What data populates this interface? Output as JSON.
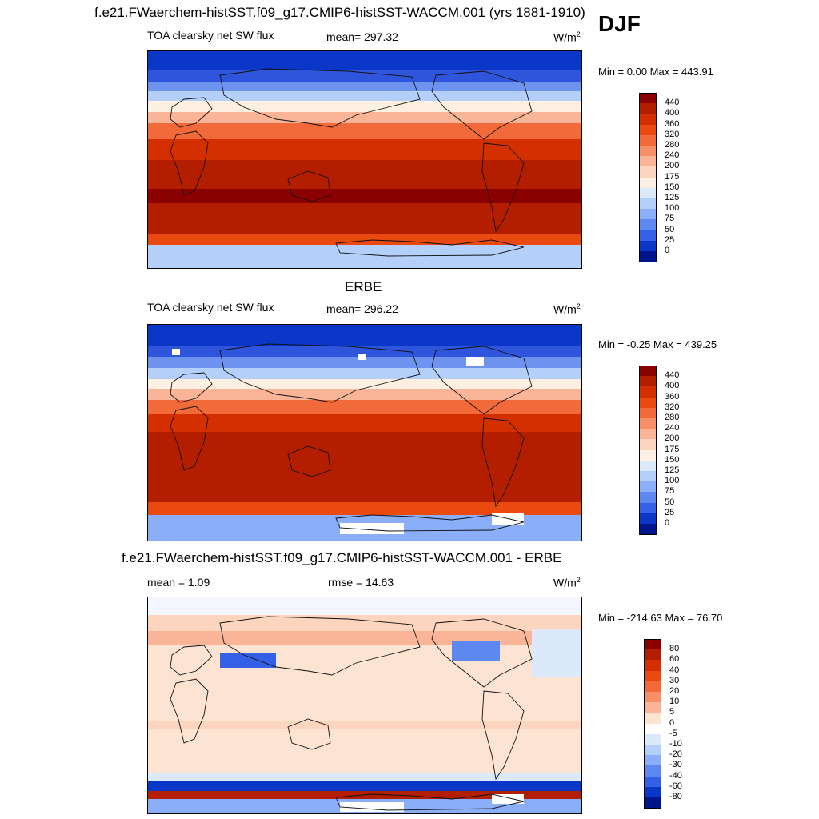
{
  "header": {
    "title": "f.e21.FWaerchem-histSST.f09_g17.CMIP6-histSST-WACCM.001 (yrs 1881-1910)",
    "season": "DJF"
  },
  "panels": [
    {
      "variable": "TOA clearsky net SW flux",
      "mean_text": "mean= 297.32",
      "units_text": "W/m",
      "units_exp": "2",
      "minmax_text": "Min =   0.00 Max = 443.91",
      "colorbar": {
        "labels": [
          "440",
          "400",
          "360",
          "320",
          "280",
          "240",
          "200",
          "175",
          "150",
          "125",
          "100",
          "75",
          "50",
          "25",
          "0"
        ],
        "colors": [
          "#8b0000",
          "#b31e00",
          "#d42f00",
          "#ea4a10",
          "#f26a3a",
          "#f79068",
          "#fab598",
          "#fbd5bd",
          "#fdf0e2",
          "#dce9fb",
          "#b4cffa",
          "#8aaef7",
          "#5d88f0",
          "#3360e6",
          "#0a37c8",
          "#00148c"
        ]
      }
    },
    {
      "title": "ERBE",
      "variable": "TOA clearsky net SW flux",
      "mean_text": "mean= 296.22",
      "units_text": "W/m",
      "units_exp": "2",
      "minmax_text": "Min =  -0.25 Max = 439.25",
      "colorbar": {
        "labels": [
          "440",
          "400",
          "360",
          "320",
          "280",
          "240",
          "200",
          "175",
          "150",
          "125",
          "100",
          "75",
          "50",
          "25",
          "0"
        ],
        "colors": [
          "#8b0000",
          "#b31e00",
          "#d42f00",
          "#ea4a10",
          "#f26a3a",
          "#f79068",
          "#fab598",
          "#fbd5bd",
          "#fdf0e2",
          "#dce9fb",
          "#b4cffa",
          "#8aaef7",
          "#5d88f0",
          "#3360e6",
          "#0a37c8",
          "#00148c"
        ]
      }
    },
    {
      "title": "f.e21.FWaerchem-histSST.f09_g17.CMIP6-histSST-WACCM.001 - ERBE",
      "mean_text": "mean =   1.09",
      "rmse_text": "rmse =  14.63",
      "units_text": "W/m",
      "units_exp": "2",
      "minmax_text": "Min = -214.63 Max =  76.70",
      "colorbar": {
        "labels": [
          "80",
          "60",
          "40",
          "30",
          "20",
          "10",
          "5",
          "0",
          "-5",
          "-10",
          "-20",
          "-30",
          "-40",
          "-60",
          "-80"
        ],
        "colors": [
          "#8b0000",
          "#b31e00",
          "#d42f00",
          "#ea4a10",
          "#f26a3a",
          "#f79068",
          "#fab598",
          "#fde3d2",
          "#ffffff",
          "#dce9fb",
          "#b4cffa",
          "#8aaef7",
          "#5d88f0",
          "#3360e6",
          "#0a37c8",
          "#00148c"
        ]
      }
    }
  ]
}
